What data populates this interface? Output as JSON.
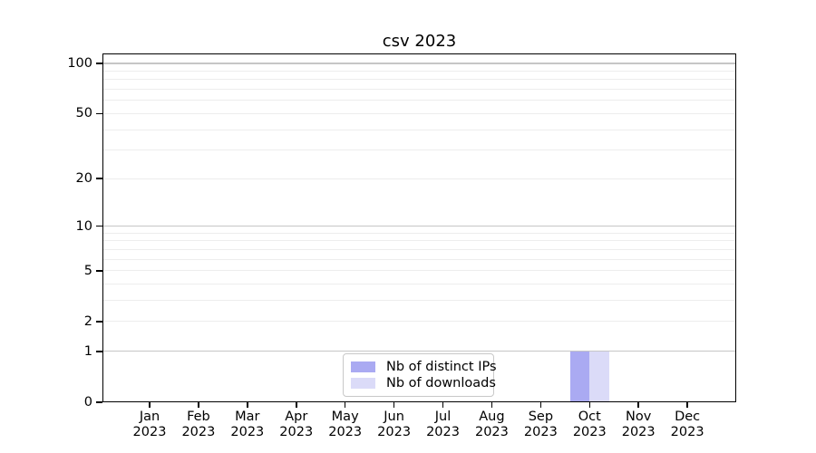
{
  "chart_data": {
    "type": "bar",
    "title": "csv 2023",
    "x": {
      "categories": [
        "Jan",
        "Feb",
        "Mar",
        "Apr",
        "May",
        "Jun",
        "Jul",
        "Aug",
        "Sep",
        "Oct",
        "Nov",
        "Dec"
      ],
      "year": "2023"
    },
    "series": [
      {
        "name": "Nb of distinct IPs",
        "color": "#aaaaf2",
        "values": [
          0,
          0,
          0,
          0,
          0,
          0,
          0,
          0,
          0,
          1,
          0,
          0
        ]
      },
      {
        "name": "Nb of downloads",
        "color": "#dbdbf8",
        "values": [
          0,
          0,
          0,
          0,
          0,
          0,
          0,
          0,
          0,
          1,
          0,
          0
        ]
      }
    ],
    "y_axis": {
      "scale": "log1p",
      "ticks": [
        0,
        1,
        2,
        5,
        10,
        20,
        50,
        100
      ],
      "max": 114.6,
      "grid_major": [
        1,
        10,
        100
      ],
      "grid_minor": [
        2,
        3,
        4,
        5,
        6,
        7,
        8,
        9,
        20,
        30,
        40,
        50,
        60,
        70,
        80,
        90
      ]
    },
    "legend": {
      "position": "lower center",
      "entries": [
        "Nb of distinct IPs",
        "Nb of downloads"
      ]
    },
    "colors": {
      "grid_major": "#c6c6c6",
      "grid_minor": "#ededed",
      "spine": "#000000",
      "legend_border": "#c8c8c8",
      "text": "#000000"
    }
  }
}
